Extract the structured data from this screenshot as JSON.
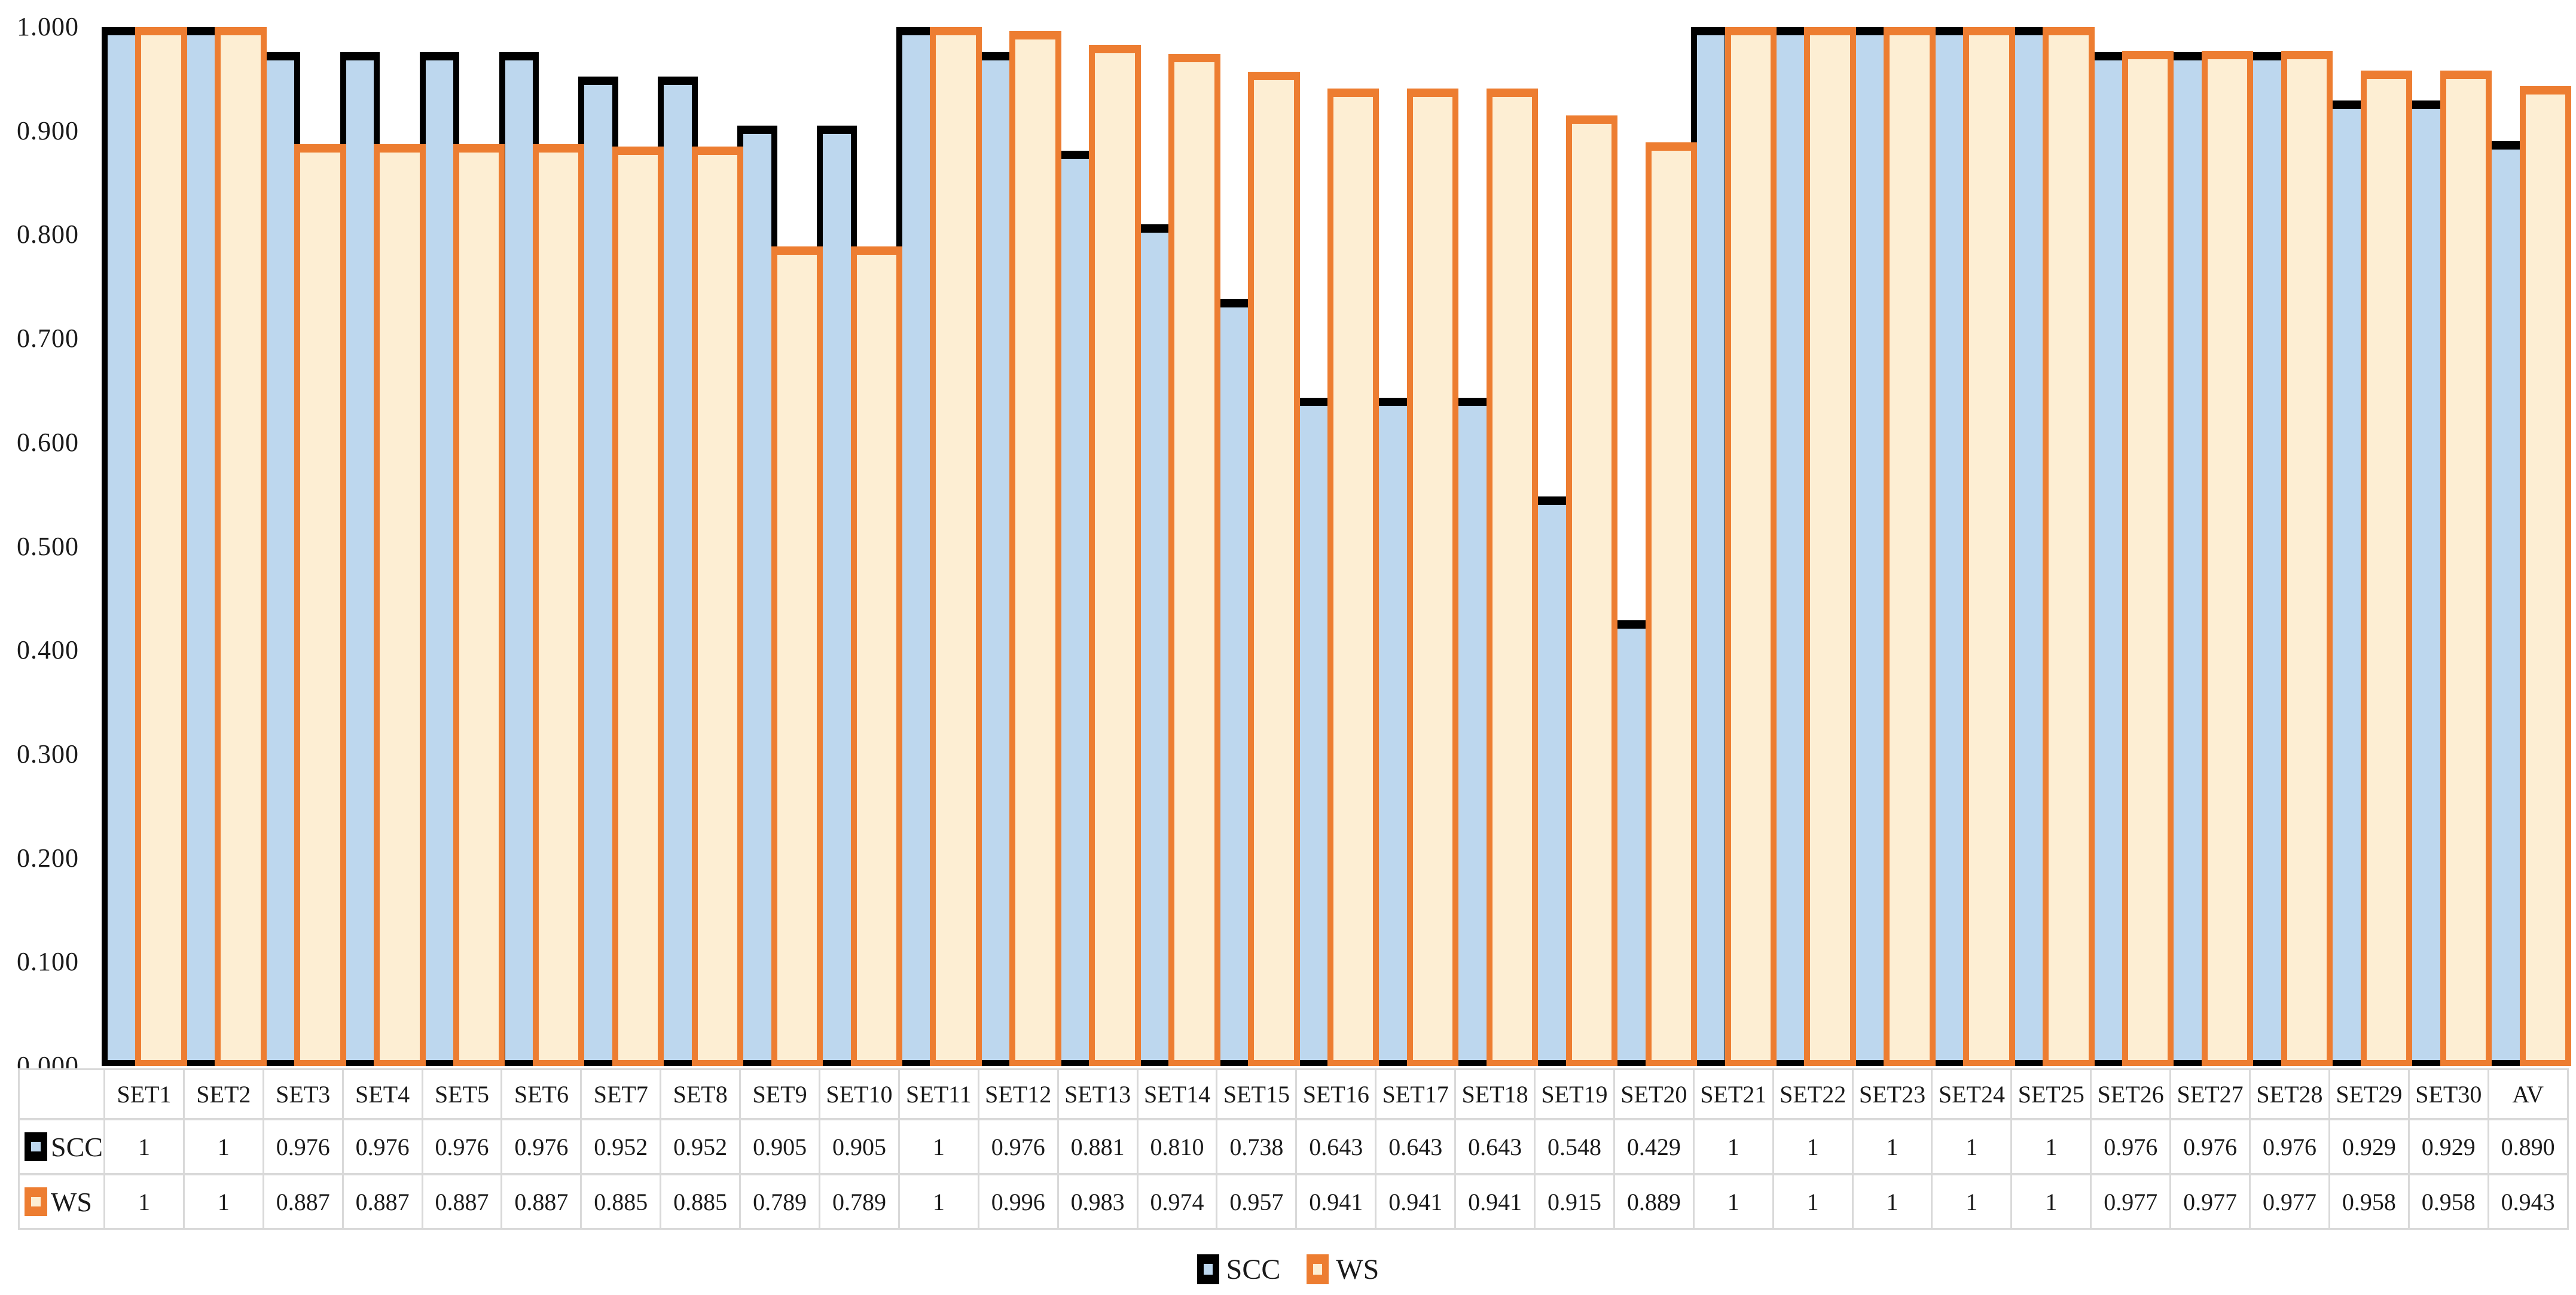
{
  "chart_data": {
    "type": "bar",
    "title": "",
    "xlabel": "",
    "ylabel": "",
    "categories": [
      "SET1",
      "SET2",
      "SET3",
      "SET4",
      "SET5",
      "SET6",
      "SET7",
      "SET8",
      "SET9",
      "SET10",
      "SET11",
      "SET12",
      "SET13",
      "SET14",
      "SET15",
      "SET16",
      "SET17",
      "SET18",
      "SET19",
      "SET20",
      "SET21",
      "SET22",
      "SET23",
      "SET24",
      "SET25",
      "SET26",
      "SET27",
      "SET28",
      "SET29",
      "SET30",
      "AV"
    ],
    "series": [
      {
        "name": "SCC",
        "fill": "#BDD7EE",
        "border": "#000000",
        "values": [
          "1",
          "1",
          "0.976",
          "0.976",
          "0.976",
          "0.976",
          "0.952",
          "0.952",
          "0.905",
          "0.905",
          "1",
          "0.976",
          "0.881",
          "0.810",
          "0.738",
          "0.643",
          "0.643",
          "0.643",
          "0.548",
          "0.429",
          "1",
          "1",
          "1",
          "1",
          "1",
          "0.976",
          "0.976",
          "0.976",
          "0.929",
          "0.929",
          "0.890"
        ]
      },
      {
        "name": "WS",
        "fill": "#FDEED3",
        "border": "#ED7D31",
        "values": [
          "1",
          "1",
          "0.887",
          "0.887",
          "0.887",
          "0.887",
          "0.885",
          "0.885",
          "0.789",
          "0.789",
          "1",
          "0.996",
          "0.983",
          "0.974",
          "0.957",
          "0.941",
          "0.941",
          "0.941",
          "0.915",
          "0.889",
          "1",
          "1",
          "1",
          "1",
          "1",
          "0.977",
          "0.977",
          "0.977",
          "0.958",
          "0.958",
          "0.943"
        ]
      }
    ],
    "ylim": [
      0,
      1
    ],
    "ytick_labels": [
      "1.000",
      "0.900",
      "0.800",
      "0.700",
      "0.600",
      "0.500",
      "0.400",
      "0.300",
      "0.200",
      "0.100",
      "0.000"
    ],
    "grid": "off",
    "legend_position": "bottom",
    "data_table_shown": true,
    "colors": {
      "table_border": "#D9D9D9",
      "text": "#1A1A1A"
    }
  }
}
